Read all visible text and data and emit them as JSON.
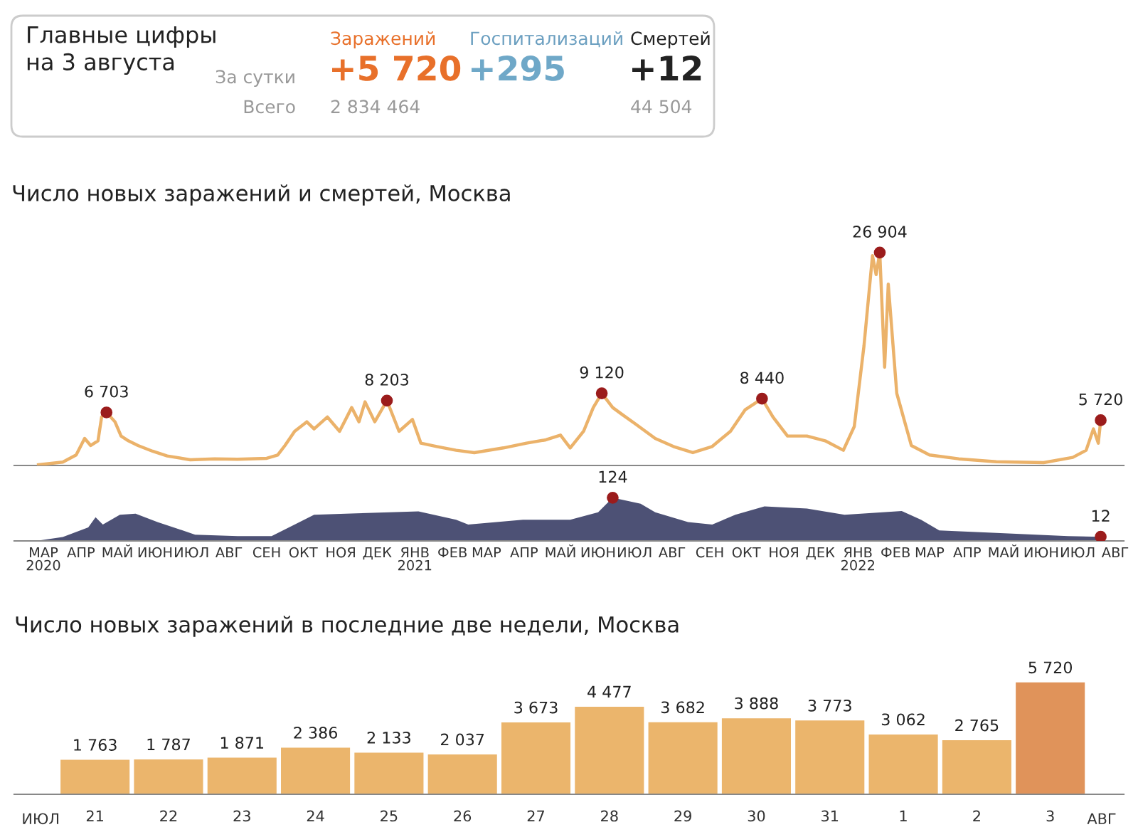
{
  "chart_data": [
    {
      "type": "other",
      "title": "Главные цифры\nна 3 августа",
      "annotations": [
        "За сутки",
        "Всего",
        "Заражений",
        "+5 720",
        "2 834 464",
        "Госпитализаций",
        "+295",
        "Смертей",
        "+12",
        "44 504"
      ]
    },
    {
      "type": "line",
      "title": "Число новых заражений и смертей, Москва",
      "tick_labels": false,
      "xlim": [
        "2020-02-20",
        "2022-08-22"
      ],
      "series": [
        {
          "color": "#ebb26a",
          "x": [
            "2020-03-11",
            "2020-03-31",
            "2020-04-11",
            "2020-04-18",
            "2020-04-23",
            "2020-04-29",
            "2020-05-02",
            "2020-05-06",
            "2020-05-13",
            "2020-05-18",
            "2020-05-24",
            "2020-06-01",
            "2020-06-13",
            "2020-06-25",
            "2020-07-14",
            "2020-08-03",
            "2020-08-22",
            "2020-09-15",
            "2020-09-24",
            "2020-09-30",
            "2020-10-08",
            "2020-10-18",
            "2020-10-24",
            "2020-11-04",
            "2020-11-14",
            "2020-11-24",
            "2020-11-30",
            "2020-12-05",
            "2020-12-13",
            "2020-12-23",
            "2021-01-02",
            "2021-01-13",
            "2021-01-20",
            "2021-02-02",
            "2021-02-18",
            "2021-03-05",
            "2021-03-29",
            "2021-04-17",
            "2021-05-03",
            "2021-05-15",
            "2021-05-23",
            "2021-06-03",
            "2021-06-11",
            "2021-06-18",
            "2021-06-27",
            "2021-07-05",
            "2021-07-16",
            "2021-08-01",
            "2021-08-16",
            "2021-09-01",
            "2021-09-17",
            "2021-10-02",
            "2021-10-14",
            "2021-10-28",
            "2021-11-06",
            "2021-11-18",
            "2021-12-04",
            "2021-12-19",
            "2022-01-03",
            "2022-01-12",
            "2022-01-20",
            "2022-01-27",
            "2022-01-30",
            "2022-02-02",
            "2022-02-06",
            "2022-02-09",
            "2022-02-16",
            "2022-02-28",
            "2022-03-15",
            "2022-04-08",
            "2022-05-09",
            "2022-06-17",
            "2022-07-11",
            "2022-07-22",
            "2022-07-28",
            "2022-08-01",
            "2022-08-03"
          ],
          "values": [
            100,
            420,
            1320,
            3420,
            2520,
            3120,
            6120,
            6703,
            5520,
            3720,
            3120,
            2520,
            1800,
            1200,
            720,
            840,
            780,
            900,
            1320,
            2520,
            4320,
            5520,
            4620,
            6120,
            4320,
            7320,
            5520,
            8040,
            5520,
            8203,
            4320,
            5820,
            2820,
            2400,
            1920,
            1620,
            2220,
            2820,
            3240,
            3840,
            2220,
            4320,
            7320,
            9120,
            7320,
            6420,
            5220,
            3420,
            2400,
            1620,
            2400,
            4320,
            7020,
            8440,
            6120,
            3720,
            3720,
            3120,
            1920,
            4920,
            15120,
            26520,
            24120,
            26904,
            12420,
            22920,
            9120,
            2520,
            1320,
            840,
            480,
            360,
            1020,
            1920,
            4620,
            2820,
            5720
          ],
          "value_labels": [
            null,
            null,
            null,
            null,
            null,
            null,
            null,
            "6 703",
            null,
            null,
            null,
            null,
            null,
            null,
            null,
            null,
            null,
            null,
            null,
            null,
            null,
            null,
            null,
            null,
            null,
            null,
            null,
            null,
            null,
            "8 203",
            null,
            null,
            null,
            null,
            null,
            null,
            null,
            null,
            null,
            null,
            null,
            null,
            null,
            "9 120",
            null,
            null,
            null,
            null,
            null,
            null,
            null,
            null,
            null,
            "8 440",
            null,
            null,
            null,
            null,
            null,
            null,
            null,
            null,
            null,
            "26 904",
            null,
            null,
            null,
            null,
            null,
            null,
            null,
            null,
            null,
            null,
            null,
            null,
            "5 720"
          ]
        }
      ]
    },
    {
      "type": "area",
      "tick_labels": "x",
      "xlim": [
        "2020-02-20",
        "2022-08-22"
      ],
      "xticks": [
        {
          "value": "2020-03-15",
          "label": "МАР\n2020"
        },
        {
          "value": "2020-04-15",
          "label": "АПР"
        },
        {
          "value": "2020-05-15",
          "label": "МАЙ"
        },
        {
          "value": "2020-06-15",
          "label": "ИЮН"
        },
        {
          "value": "2020-07-15",
          "label": "ИЮЛ"
        },
        {
          "value": "2020-08-15",
          "label": "АВГ"
        },
        {
          "value": "2020-09-15",
          "label": "СЕН"
        },
        {
          "value": "2020-10-15",
          "label": "ОКТ"
        },
        {
          "value": "2020-11-15",
          "label": "НОЯ"
        },
        {
          "value": "2020-12-15",
          "label": "ДЕК"
        },
        {
          "value": "2021-01-15",
          "label": "ЯНВ\n2021"
        },
        {
          "value": "2021-02-15",
          "label": "ФЕВ"
        },
        {
          "value": "2021-03-15",
          "label": "МАР"
        },
        {
          "value": "2021-04-15",
          "label": "АПР"
        },
        {
          "value": "2021-05-15",
          "label": "МАЙ"
        },
        {
          "value": "2021-06-15",
          "label": "ИЮН"
        },
        {
          "value": "2021-07-15",
          "label": "ИЮЛ"
        },
        {
          "value": "2021-08-15",
          "label": "АВГ"
        },
        {
          "value": "2021-09-15",
          "label": "СЕН"
        },
        {
          "value": "2021-10-15",
          "label": "ОКТ"
        },
        {
          "value": "2021-11-15",
          "label": "НОЯ"
        },
        {
          "value": "2021-12-15",
          "label": "ДЕК"
        },
        {
          "value": "2022-01-15",
          "label": "ЯНВ\n2022"
        },
        {
          "value": "2022-02-15",
          "label": "ФЕВ"
        },
        {
          "value": "2022-03-15",
          "label": "МАР"
        },
        {
          "value": "2022-04-15",
          "label": "АПР"
        },
        {
          "value": "2022-05-15",
          "label": "МАЙ"
        },
        {
          "value": "2022-06-15",
          "label": "ИЮН"
        },
        {
          "value": "2022-07-15",
          "label": "ИЮЛ"
        },
        {
          "value": "2022-08-15",
          "label": "АВГ"
        }
      ],
      "series": [
        {
          "color": "#4d5175",
          "x": [
            "2020-03-11",
            "2020-03-31",
            "2020-04-21",
            "2020-04-27",
            "2020-05-03",
            "2020-05-17",
            "2020-05-30",
            "2020-06-17",
            "2020-07-02",
            "2020-07-18",
            "2020-08-22",
            "2020-09-19",
            "2020-10-08",
            "2020-10-24",
            "2020-11-28",
            "2021-01-18",
            "2021-02-18",
            "2021-02-28",
            "2021-04-14",
            "2021-05-23",
            "2021-06-15",
            "2021-06-27",
            "2021-07-20",
            "2021-08-01",
            "2021-08-28",
            "2021-09-17",
            "2021-10-06",
            "2021-10-30",
            "2021-12-04",
            "2022-01-04",
            "2022-02-20",
            "2022-03-08",
            "2022-03-23",
            "2022-05-09",
            "2022-07-07",
            "2022-08-03"
          ],
          "values": [
            1,
            11,
            39,
            68,
            47,
            75,
            78,
            54,
            37,
            18,
            14,
            14,
            47,
            75,
            79,
            85,
            61,
            47,
            61,
            61,
            82,
            124,
            107,
            82,
            54,
            47,
            75,
            99,
            93,
            75,
            86,
            61,
            30,
            23,
            14,
            12
          ],
          "value_labels": [
            null,
            null,
            null,
            null,
            null,
            null,
            null,
            null,
            null,
            null,
            null,
            null,
            null,
            null,
            null,
            null,
            null,
            null,
            null,
            null,
            null,
            "124",
            null,
            null,
            null,
            null,
            null,
            null,
            null,
            null,
            null,
            null,
            null,
            null,
            null,
            "12"
          ]
        }
      ]
    },
    {
      "type": "bar",
      "title": "Число новых заражений в последние две недели, Москва",
      "categories": [
        "21",
        "22",
        "23",
        "24",
        "25",
        "26",
        "27",
        "28",
        "29",
        "30",
        "31",
        "1",
        "2",
        "3"
      ],
      "values": [
        1763,
        1787,
        1871,
        2386,
        2133,
        2037,
        3673,
        4477,
        3682,
        3888,
        3773,
        3062,
        2765,
        5720
      ],
      "value_labels": [
        "1 763",
        "1 787",
        "1 871",
        "2 386",
        "2 133",
        "2 037",
        "3 673",
        "4 477",
        "3 682",
        "3 888",
        "3 773",
        "3 062",
        "2 765",
        "5 720"
      ],
      "colors": [
        "#ebb56c",
        "#ebb56c",
        "#ebb56c",
        "#ebb56c",
        "#ebb56c",
        "#ebb56c",
        "#ebb56c",
        "#ebb56c",
        "#ebb56c",
        "#ebb56c",
        "#ebb56c",
        "#ebb56c",
        "#ebb56c",
        "#e0935a"
      ],
      "tick_labels": "x",
      "annotations": [
        "ИЮЛ",
        "АВГ"
      ]
    }
  ]
}
